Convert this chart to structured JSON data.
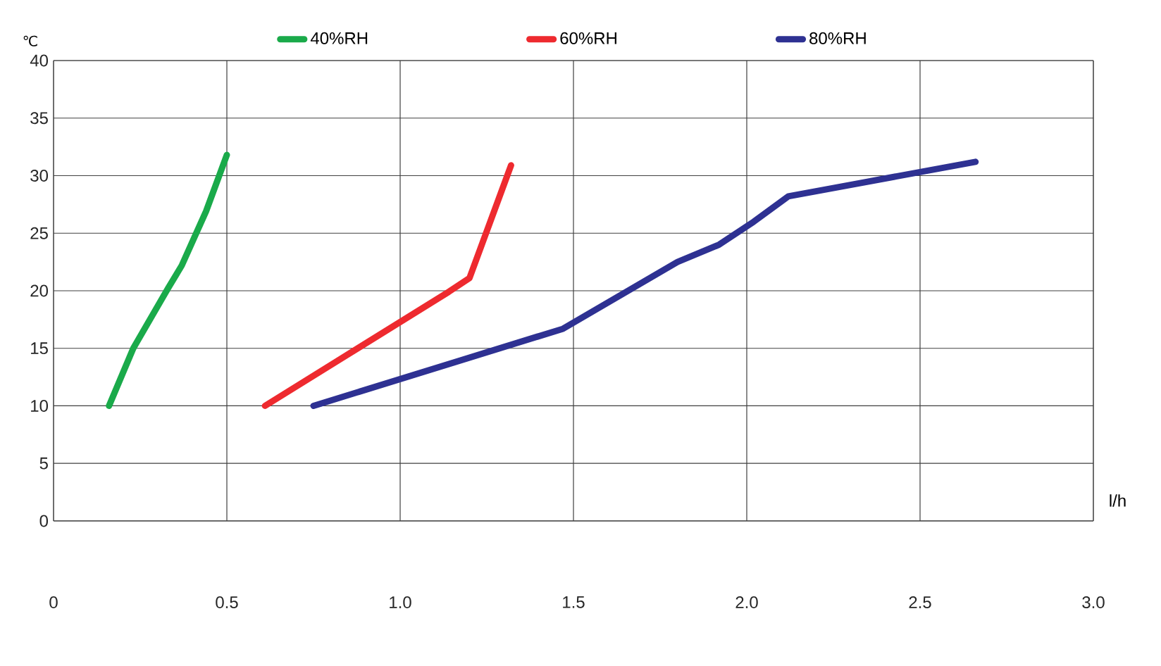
{
  "chart_data": {
    "type": "line",
    "xlabel": "l/h",
    "ylabel": "℃",
    "xlim": [
      0,
      3
    ],
    "xticks": [
      0,
      {
        "value": 0.5,
        "label": "0.5"
      },
      {
        "value": 1,
        "label": "1.0"
      },
      {
        "value": 1.5,
        "label": "1.5"
      },
      {
        "value": 2,
        "label": "2.0"
      },
      {
        "value": 2.5,
        "label": "2.5"
      },
      {
        "value": 3,
        "label": "3.0"
      }
    ],
    "ylim": [
      0,
      40
    ],
    "yticks": [
      0,
      5,
      10,
      15,
      20,
      25,
      30,
      35,
      40
    ],
    "grid": true,
    "legend": "top",
    "marker": "none",
    "line_style": "solid",
    "series": [
      {
        "name": "40%RH",
        "color": "#1aaa4a",
        "x": [
          0.16,
          0.23,
          0.33,
          0.37,
          0.44,
          0.5
        ],
        "values": [
          10,
          15,
          20.2,
          22.2,
          26.9,
          31.8
        ]
      },
      {
        "name": "60%RH",
        "color": "#ee2a2f",
        "x": [
          0.61,
          1.14,
          1.2,
          1.32
        ],
        "values": [
          10,
          19.9,
          21.1,
          30.9
        ]
      },
      {
        "name": "80%RH",
        "color": "#2e3192",
        "x": [
          0.75,
          1.47,
          1.8,
          1.92,
          2.02,
          2.12,
          2.66
        ],
        "values": [
          10,
          16.7,
          22.5,
          24,
          26,
          28.2,
          31.2
        ]
      }
    ]
  }
}
